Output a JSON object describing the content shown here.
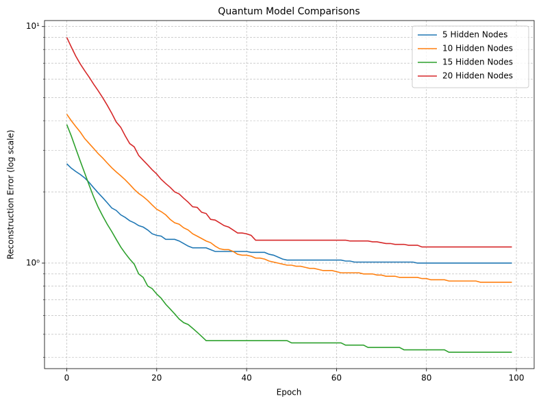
{
  "chart_data": {
    "type": "line",
    "title": "Quantum Model Comparisons",
    "x_label": "Epoch",
    "y_label": "Reconstruction Error (log scale)",
    "x": [
      0,
      1,
      2,
      3,
      4,
      5,
      6,
      7,
      8,
      9,
      10,
      11,
      12,
      13,
      14,
      15,
      16,
      17,
      18,
      19,
      20,
      21,
      22,
      23,
      24,
      25,
      26,
      27,
      28,
      29,
      30,
      31,
      32,
      33,
      34,
      35,
      36,
      37,
      38,
      39,
      40,
      41,
      42,
      43,
      44,
      45,
      46,
      47,
      48,
      49,
      50,
      51,
      52,
      53,
      54,
      55,
      56,
      57,
      58,
      59,
      60,
      61,
      62,
      63,
      64,
      65,
      66,
      67,
      68,
      69,
      70,
      71,
      72,
      73,
      74,
      75,
      76,
      77,
      78,
      79,
      80,
      81,
      82,
      83,
      84,
      85,
      86,
      87,
      88,
      89,
      90,
      91,
      92,
      93,
      94,
      95,
      96,
      97,
      98,
      99
    ],
    "series": [
      {
        "name": "5 Hidden Nodes",
        "color": "#1f77b4",
        "values": [
          2.63,
          2.52,
          2.44,
          2.37,
          2.29,
          2.19,
          2.08,
          1.98,
          1.89,
          1.8,
          1.71,
          1.67,
          1.6,
          1.56,
          1.51,
          1.48,
          1.44,
          1.42,
          1.38,
          1.33,
          1.31,
          1.3,
          1.26,
          1.26,
          1.26,
          1.24,
          1.21,
          1.18,
          1.16,
          1.16,
          1.16,
          1.16,
          1.14,
          1.12,
          1.12,
          1.12,
          1.12,
          1.12,
          1.12,
          1.12,
          1.12,
          1.11,
          1.11,
          1.11,
          1.11,
          1.09,
          1.08,
          1.06,
          1.04,
          1.03,
          1.03,
          1.03,
          1.03,
          1.03,
          1.03,
          1.03,
          1.03,
          1.03,
          1.03,
          1.03,
          1.03,
          1.03,
          1.02,
          1.02,
          1.01,
          1.01,
          1.01,
          1.01,
          1.01,
          1.01,
          1.01,
          1.01,
          1.01,
          1.01,
          1.01,
          1.01,
          1.01,
          1.01,
          1,
          1,
          1,
          1,
          1,
          1,
          1,
          1,
          1,
          1,
          1,
          1,
          1,
          1,
          1,
          1,
          1,
          1,
          1,
          1,
          1,
          1
        ]
      },
      {
        "name": "10 Hidden Nodes",
        "color": "#ff7f0e",
        "values": [
          4.26,
          4,
          3.78,
          3.58,
          3.36,
          3.2,
          3.05,
          2.9,
          2.78,
          2.65,
          2.53,
          2.43,
          2.34,
          2.25,
          2.15,
          2.05,
          1.97,
          1.91,
          1.84,
          1.76,
          1.69,
          1.65,
          1.6,
          1.53,
          1.48,
          1.46,
          1.41,
          1.38,
          1.33,
          1.3,
          1.27,
          1.24,
          1.22,
          1.18,
          1.15,
          1.14,
          1.14,
          1.12,
          1.09,
          1.08,
          1.08,
          1.07,
          1.05,
          1.05,
          1.04,
          1.02,
          1.01,
          1,
          0.99,
          0.98,
          0.98,
          0.97,
          0.97,
          0.96,
          0.95,
          0.95,
          0.94,
          0.93,
          0.93,
          0.93,
          0.92,
          0.91,
          0.91,
          0.91,
          0.91,
          0.91,
          0.9,
          0.9,
          0.9,
          0.89,
          0.89,
          0.88,
          0.88,
          0.88,
          0.87,
          0.87,
          0.87,
          0.87,
          0.87,
          0.86,
          0.86,
          0.85,
          0.85,
          0.85,
          0.85,
          0.84,
          0.84,
          0.84,
          0.84,
          0.84,
          0.84,
          0.84,
          0.83,
          0.83,
          0.83,
          0.83,
          0.83,
          0.83,
          0.83,
          0.83
        ]
      },
      {
        "name": "15 Hidden Nodes",
        "color": "#2ca02c",
        "values": [
          3.85,
          3.45,
          3.05,
          2.7,
          2.4,
          2.13,
          1.9,
          1.72,
          1.58,
          1.46,
          1.36,
          1.26,
          1.17,
          1.1,
          1.04,
          0.99,
          0.9,
          0.87,
          0.8,
          0.78,
          0.74,
          0.71,
          0.67,
          0.64,
          0.61,
          0.58,
          0.56,
          0.55,
          0.53,
          0.51,
          0.49,
          0.47,
          0.47,
          0.47,
          0.47,
          0.47,
          0.47,
          0.47,
          0.47,
          0.47,
          0.47,
          0.47,
          0.47,
          0.47,
          0.47,
          0.47,
          0.47,
          0.47,
          0.47,
          0.47,
          0.46,
          0.46,
          0.46,
          0.46,
          0.46,
          0.46,
          0.46,
          0.46,
          0.46,
          0.46,
          0.46,
          0.46,
          0.45,
          0.45,
          0.45,
          0.45,
          0.45,
          0.44,
          0.44,
          0.44,
          0.44,
          0.44,
          0.44,
          0.44,
          0.44,
          0.43,
          0.43,
          0.43,
          0.43,
          0.43,
          0.43,
          0.43,
          0.43,
          0.43,
          0.43,
          0.42,
          0.42,
          0.42,
          0.42,
          0.42,
          0.42,
          0.42,
          0.42,
          0.42,
          0.42,
          0.42,
          0.42,
          0.42,
          0.42,
          0.42
        ]
      },
      {
        "name": "20 Hidden Nodes",
        "color": "#d62728",
        "values": [
          9,
          8.2,
          7.5,
          6.95,
          6.5,
          6.1,
          5.7,
          5.35,
          5,
          4.65,
          4.3,
          3.95,
          3.75,
          3.45,
          3.2,
          3.1,
          2.85,
          2.72,
          2.6,
          2.48,
          2.38,
          2.26,
          2.17,
          2.09,
          2,
          1.96,
          1.88,
          1.81,
          1.73,
          1.72,
          1.64,
          1.62,
          1.53,
          1.52,
          1.48,
          1.44,
          1.42,
          1.38,
          1.34,
          1.34,
          1.33,
          1.31,
          1.25,
          1.25,
          1.25,
          1.25,
          1.25,
          1.25,
          1.25,
          1.25,
          1.25,
          1.25,
          1.25,
          1.25,
          1.25,
          1.25,
          1.25,
          1.25,
          1.25,
          1.25,
          1.25,
          1.25,
          1.25,
          1.24,
          1.24,
          1.24,
          1.24,
          1.24,
          1.23,
          1.23,
          1.22,
          1.21,
          1.21,
          1.2,
          1.2,
          1.2,
          1.19,
          1.19,
          1.19,
          1.17,
          1.17,
          1.17,
          1.17,
          1.17,
          1.17,
          1.17,
          1.17,
          1.17,
          1.17,
          1.17,
          1.17,
          1.17,
          1.17,
          1.17,
          1.17,
          1.17,
          1.17,
          1.17,
          1.17,
          1.17
        ]
      }
    ],
    "xlim": [
      -4.95,
      103.95
    ],
    "xticks": [
      0,
      20,
      40,
      60,
      80,
      100
    ],
    "ylim": [
      0.358,
      10.6
    ],
    "log_y": true,
    "yticks": [
      {
        "value": 1,
        "label": "10⁰"
      },
      {
        "value": 10,
        "label": "10¹"
      }
    ],
    "yminorticks": [
      0.4,
      0.5,
      0.6,
      0.7,
      0.8,
      0.9,
      2,
      3,
      4,
      5,
      6,
      7,
      8,
      9
    ],
    "grid": true,
    "legend": "upper right"
  }
}
